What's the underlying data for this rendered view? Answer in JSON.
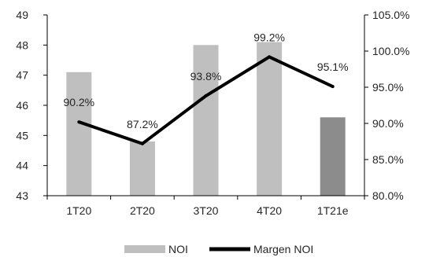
{
  "chart_data": {
    "type": "bar",
    "categories": [
      "1T20",
      "2T20",
      "3T20",
      "4T20",
      "1T21e"
    ],
    "series": [
      {
        "name": "NOI",
        "type": "bar",
        "axis": "left",
        "values": [
          47.1,
          44.8,
          48.0,
          48.1,
          45.6
        ],
        "colors": [
          "#bfbfbf",
          "#bfbfbf",
          "#bfbfbf",
          "#bfbfbf",
          "#8c8c8c"
        ]
      },
      {
        "name": "Margen NOI",
        "type": "line",
        "axis": "right",
        "values": [
          90.2,
          87.2,
          93.8,
          99.2,
          95.1
        ],
        "labels": [
          "90.2%",
          "87.2%",
          "93.8%",
          "99.2%",
          "95.1%"
        ],
        "color": "#000000"
      }
    ],
    "y_left": {
      "min": 43,
      "max": 49,
      "ticks": [
        "43",
        "44",
        "45",
        "46",
        "47",
        "48",
        "49"
      ]
    },
    "y_right": {
      "min": 80,
      "max": 105,
      "ticks": [
        "80.0%",
        "85.0%",
        "90.0%",
        "95.0%",
        "100.0%",
        "105.0%"
      ]
    },
    "grid": false,
    "legend_position": "bottom"
  }
}
